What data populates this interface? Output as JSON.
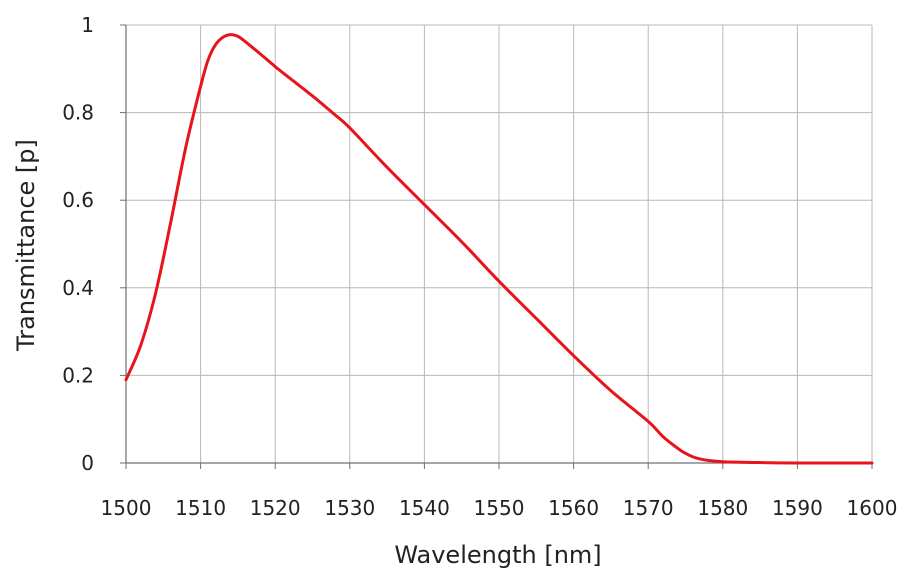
{
  "chart_data": {
    "type": "line",
    "title": "",
    "xlabel": "Wavelength [nm]",
    "ylabel": "Transmittance [p]",
    "xlim": [
      1500,
      1600
    ],
    "ylim": [
      0,
      1
    ],
    "x_ticks": [
      1500,
      1510,
      1520,
      1530,
      1540,
      1550,
      1560,
      1570,
      1580,
      1590,
      1600
    ],
    "y_ticks": [
      0,
      0.2,
      0.4,
      0.6,
      0.8,
      1
    ],
    "y_tick_labels": [
      "0",
      "0.2",
      "0.4",
      "0.6",
      "0.8",
      "1"
    ],
    "grid": true,
    "legend": "none",
    "series": [
      {
        "color": "#e8141c",
        "x": [
          1500,
          1502,
          1504,
          1506,
          1508,
          1510,
          1511,
          1512,
          1513,
          1514,
          1515,
          1516,
          1517,
          1518,
          1520,
          1522,
          1525,
          1528,
          1530,
          1535,
          1540,
          1545,
          1550,
          1555,
          1560,
          1565,
          1570,
          1572,
          1574,
          1575,
          1576,
          1577,
          1578,
          1580,
          1585,
          1590,
          1595,
          1600
        ],
        "y": [
          0.19,
          0.27,
          0.39,
          0.55,
          0.72,
          0.86,
          0.92,
          0.955,
          0.972,
          0.978,
          0.974,
          0.962,
          0.948,
          0.934,
          0.905,
          0.878,
          0.838,
          0.795,
          0.765,
          0.675,
          0.59,
          0.505,
          0.415,
          0.33,
          0.245,
          0.165,
          0.095,
          0.06,
          0.033,
          0.022,
          0.014,
          0.009,
          0.006,
          0.003,
          0.001,
          0.0,
          0.0,
          0.0
        ]
      }
    ]
  }
}
